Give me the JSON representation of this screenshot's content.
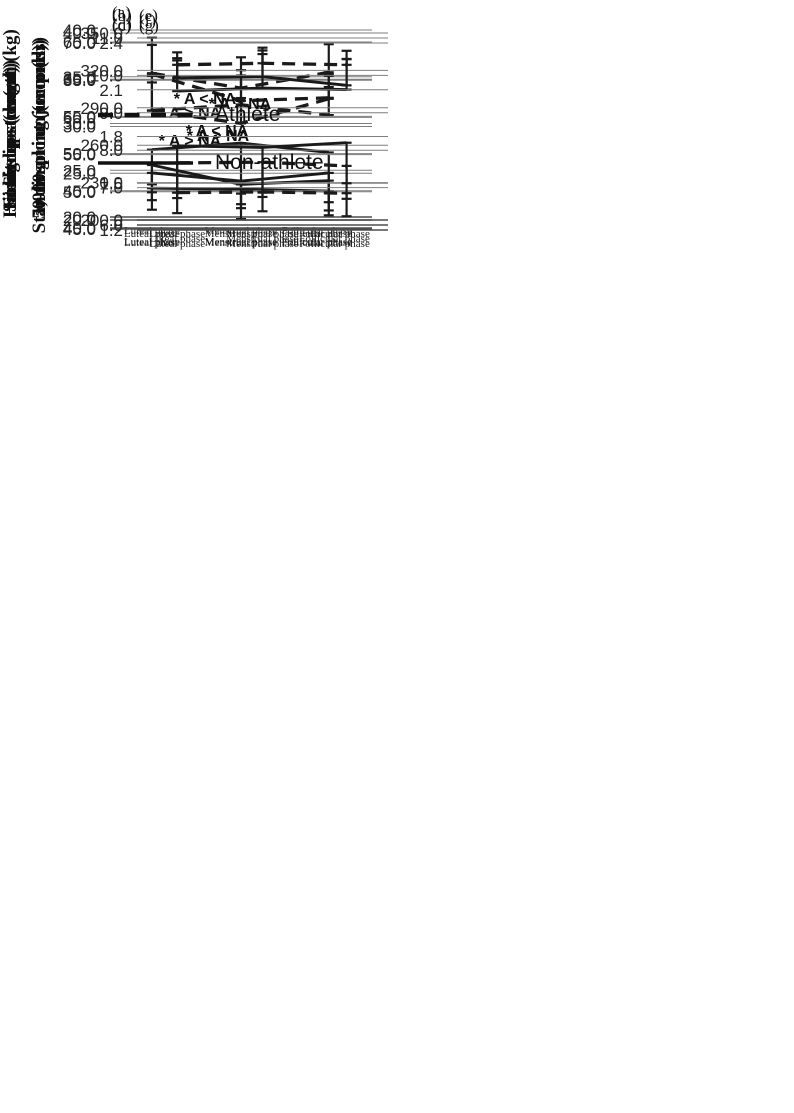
{
  "figure": {
    "background": "#ffffff",
    "colors": {
      "line": "#1a1a1a",
      "grid": "#7f7f7f",
      "axis": "#4d4d4d",
      "tick_text": "#262626"
    },
    "legend": {
      "items": [
        {
          "label": "Athlete",
          "style": "dashed"
        },
        {
          "label": "Non-athlete",
          "style": "solid"
        }
      ]
    }
  },
  "chart_data": [
    {
      "id": "a",
      "type": "line",
      "panel_label": "(a)",
      "ylabel": "Handgrip strength (kg)",
      "ylim": [
        20,
        40
      ],
      "ytick_step": 5,
      "yticks": [
        "20.0",
        "25.0",
        "30.0",
        "35.0",
        "40.0"
      ],
      "categories": [
        "Luteal phase",
        "Menstrual phase",
        "Follicular phase"
      ],
      "series": [
        {
          "name": "Athlete",
          "style": "dashed",
          "values": [
            31.4,
            32.0,
            30.9
          ],
          "error_ends": [
            35.1,
            35.7,
            33.9
          ],
          "error_dir": "up"
        },
        {
          "name": "Non-athlete",
          "style": "solid",
          "values": [
            27.2,
            27.9,
            26.9
          ],
          "error_ends": [
            21.8,
            22.5,
            20.7
          ],
          "error_dir": "down"
        }
      ],
      "annotation": null,
      "grid": true
    },
    {
      "id": "b",
      "type": "line",
      "panel_label": "(b)",
      "ylabel": "Sit-ups (count)",
      "ylim": [
        20,
        40
      ],
      "ytick_step": 5,
      "yticks": [
        "20.0",
        "25.0",
        "30.0",
        "35.0",
        "40.0"
      ],
      "categories": [
        "Luteal phase",
        "Menstrual phase",
        "Follicular phase"
      ],
      "series": [
        {
          "name": "Athlete",
          "style": "dashed",
          "values": [
            35.7,
            34.1,
            35.8
          ],
          "error_ends": [
            39.5,
            37.4,
            38.8
          ],
          "error_dir": "up"
        },
        {
          "name": "Non-athlete",
          "style": "solid",
          "values": [
            23.4,
            23.3,
            23.1
          ],
          "error_ends": [
            21.1,
            20.1,
            20.5
          ],
          "error_dir": "down"
        }
      ],
      "annotation": {
        "text": "* A > NA"
      },
      "grid": true
    },
    {
      "id": "c",
      "type": "line",
      "panel_label": "(c)",
      "ylabel": "Sit-and-reach (cm)",
      "ylim": [
        45,
        70
      ],
      "ytick_step": 5,
      "yticks": [
        "45.0",
        "50.0",
        "55.0",
        "60.0",
        "65.0",
        "70.0"
      ],
      "categories": [
        "Luteal phase",
        "Menstrual phase",
        "Follicular phase"
      ],
      "series": [
        {
          "name": "Athlete",
          "style": "dashed",
          "values": [
            60.9,
            59.2,
            62.5
          ],
          "error_ends": [
            64.7,
            62.6,
            65.6
          ],
          "error_dir": "up"
        },
        {
          "name": "Non-athlete",
          "style": "solid",
          "values": [
            53.6,
            51.0,
            51.5
          ],
          "error_ends": [
            51.0,
            47.8,
            48.6
          ],
          "error_dir": "down"
        }
      ],
      "annotation": {
        "text": "* A > NA"
      },
      "grid": true
    },
    {
      "id": "d",
      "type": "line",
      "panel_label": "(d)",
      "ylabel": "Side-steps (count)",
      "ylim": [
        40,
        65
      ],
      "ytick_step": 5,
      "yticks": [
        "40.0",
        "45.0",
        "50.0",
        "55.0",
        "60.0",
        "65.0"
      ],
      "categories": [
        "Luteal phase",
        "Menstrual phase",
        "Follicular phase"
      ],
      "series": [
        {
          "name": "Athlete",
          "style": "dashed",
          "values": [
            60.7,
            57.1,
            57.5
          ],
          "error_ends": [
            64.6,
            60.5,
            60.7
          ],
          "error_dir": "up"
        },
        {
          "name": "Non-athlete",
          "style": "solid",
          "values": [
            47.4,
            46.3,
            47.4
          ],
          "error_ends": [
            44.8,
            43.2,
            44.7
          ],
          "error_dir": "down"
        }
      ],
      "annotation": {
        "text": "* A > NA"
      },
      "grid": true
    },
    {
      "id": "e",
      "type": "line",
      "panel_label": "(e)",
      "ylabel": "1,000-m run (seconds)",
      "ylim": [
        200,
        350
      ],
      "ytick_step": 30,
      "yticks": [
        "200.0",
        "230.0",
        "260.0",
        "290.0",
        "320.0",
        "350.0"
      ],
      "categories": [
        "Luteal phase",
        "Menstrual phase",
        "Follicular phase"
      ],
      "series": [
        {
          "name": "Athlete",
          "style": "dashed",
          "values": [
            222.0,
            222.5,
            221.5
          ],
          "error_ends": [
            205.5,
            207.0,
            203.0
          ],
          "error_dir": "down"
        },
        {
          "name": "Non-athlete",
          "style": "solid",
          "values": [
            314.0,
            315.0,
            308.0
          ],
          "error_ends": [
            328.0,
            336.0,
            329.0
          ],
          "error_dir": "up"
        }
      ],
      "annotation": {
        "text": "* A < NA"
      },
      "grid": true
    },
    {
      "id": "f",
      "type": "line",
      "panel_label": "(f)",
      "ylabel": "50-m sprint (seconds)",
      "ylim": [
        6,
        11
      ],
      "ytick_step": 1,
      "yticks": [
        "6.0",
        "7.0",
        "8.0",
        "9.0",
        "10.0",
        "11.0"
      ],
      "categories": [
        "Luteal phase",
        "Menstrual phase",
        "Follicular phase"
      ],
      "series": [
        {
          "name": "Athlete",
          "style": "dashed",
          "values": [
            7.66,
            7.68,
            7.58
          ],
          "error_ends": [
            6.72,
            6.75,
            6.7
          ],
          "error_dir": "down"
        },
        {
          "name": "Non-athlete",
          "style": "solid",
          "values": [
            9.58,
            9.66,
            9.62
          ],
          "error_ends": [
            10.46,
            10.57,
            10.44
          ],
          "error_dir": "up"
        }
      ],
      "annotation": {
        "text": "* A < NA"
      },
      "grid": true
    },
    {
      "id": "g",
      "type": "line",
      "panel_label": "(g)",
      "ylabel": "Standing long jump (m)",
      "ylim": [
        1.2,
        2.4
      ],
      "ytick_step": 0.3,
      "yticks": [
        "1.2",
        "1.5",
        "1.8",
        "2.1",
        "2.4"
      ],
      "categories": [
        "Luteal phase",
        "Menstrual phase",
        "Follicular phase"
      ],
      "series": [
        {
          "name": "Athlete",
          "style": "dashed",
          "values": [
            2.26,
            2.27,
            2.26
          ],
          "error_ends": [
            2.34,
            2.37,
            2.35
          ],
          "error_dir": "up"
        },
        {
          "name": "Non-athlete",
          "style": "solid",
          "values": [
            1.74,
            1.73,
            1.76
          ],
          "error_ends": [
            1.44,
            1.44,
            1.5
          ],
          "error_dir": "down"
        }
      ],
      "annotation": {
        "text": "* A > NA"
      },
      "grid": true
    }
  ]
}
